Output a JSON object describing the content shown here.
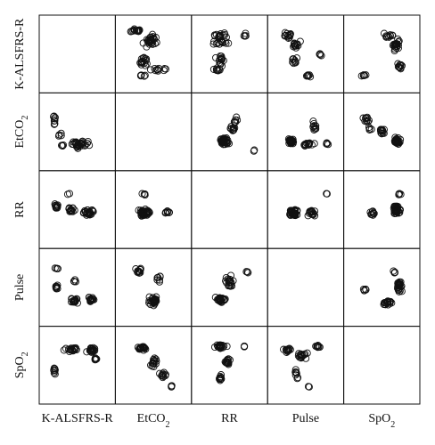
{
  "chart_data": {
    "type": "scatter",
    "variables": [
      "K-ALSFRS-R",
      "EtCO",
      "RR",
      "Pulse",
      "SpO"
    ],
    "label_subscripts": [
      "",
      "2",
      "",
      "",
      "2"
    ],
    "diagonal": "empty",
    "marker": "open-circle",
    "grid": true,
    "axis_ticks": false,
    "panels": [
      {
        "row": 0,
        "col": 1,
        "clusters": [
          [
            0.2,
            0.12,
            0.22,
            0.06,
            14
          ],
          [
            0.45,
            0.28,
            0.18,
            0.18,
            30
          ],
          [
            0.35,
            0.62,
            0.16,
            0.12,
            16
          ],
          [
            0.6,
            0.75,
            0.3,
            0.05,
            10
          ],
          [
            0.3,
            0.85,
            0.12,
            0.04,
            5
          ]
        ]
      },
      {
        "row": 0,
        "col": 2,
        "clusters": [
          [
            0.3,
            0.2,
            0.35,
            0.06,
            14
          ],
          [
            0.4,
            0.32,
            0.3,
            0.08,
            14
          ],
          [
            0.35,
            0.6,
            0.12,
            0.15,
            14
          ],
          [
            0.3,
            0.75,
            0.2,
            0.08,
            8
          ],
          [
            0.75,
            0.2,
            0.06,
            0.08,
            4
          ]
        ]
      },
      {
        "row": 0,
        "col": 3,
        "clusters": [
          [
            0.2,
            0.2,
            0.15,
            0.08,
            12
          ],
          [
            0.35,
            0.35,
            0.15,
            0.1,
            12
          ],
          [
            0.35,
            0.6,
            0.15,
            0.1,
            10
          ],
          [
            0.55,
            0.85,
            0.1,
            0.03,
            6
          ],
          [
            0.75,
            0.5,
            0.08,
            0.05,
            4
          ]
        ]
      },
      {
        "row": 0,
        "col": 4,
        "clusters": [
          [
            0.6,
            0.2,
            0.15,
            0.08,
            10
          ],
          [
            0.75,
            0.35,
            0.1,
            0.15,
            22
          ],
          [
            0.8,
            0.7,
            0.08,
            0.12,
            10
          ],
          [
            0.2,
            0.85,
            0.1,
            0.03,
            5
          ]
        ]
      },
      {
        "row": 1,
        "col": 0,
        "clusters": [
          [
            0.12,
            0.3,
            0.04,
            0.15,
            8
          ],
          [
            0.25,
            0.72,
            0.05,
            0.05,
            4
          ],
          [
            0.55,
            0.7,
            0.3,
            0.12,
            30
          ],
          [
            0.2,
            0.55,
            0.06,
            0.05,
            4
          ]
        ]
      },
      {
        "row": 1,
        "col": 2,
        "clusters": [
          [
            0.4,
            0.65,
            0.15,
            0.1,
            40
          ],
          [
            0.55,
            0.45,
            0.1,
            0.1,
            10
          ],
          [
            0.6,
            0.3,
            0.06,
            0.1,
            6
          ],
          [
            0.9,
            0.8,
            0.04,
            0.03,
            2
          ]
        ]
      },
      {
        "row": 1,
        "col": 3,
        "clusters": [
          [
            0.25,
            0.65,
            0.1,
            0.1,
            30
          ],
          [
            0.55,
            0.7,
            0.15,
            0.08,
            14
          ],
          [
            0.65,
            0.4,
            0.08,
            0.15,
            10
          ],
          [
            0.85,
            0.7,
            0.06,
            0.05,
            4
          ]
        ]
      },
      {
        "row": 1,
        "col": 4,
        "clusters": [
          [
            0.25,
            0.3,
            0.1,
            0.08,
            10
          ],
          [
            0.5,
            0.5,
            0.1,
            0.1,
            14
          ],
          [
            0.75,
            0.65,
            0.1,
            0.1,
            30
          ],
          [
            0.3,
            0.45,
            0.06,
            0.05,
            4
          ]
        ]
      },
      {
        "row": 2,
        "col": 0,
        "clusters": [
          [
            0.15,
            0.45,
            0.08,
            0.1,
            12
          ],
          [
            0.4,
            0.5,
            0.1,
            0.1,
            14
          ],
          [
            0.7,
            0.55,
            0.15,
            0.1,
            24
          ],
          [
            0.35,
            0.25,
            0.04,
            0.04,
            2
          ]
        ]
      },
      {
        "row": 2,
        "col": 1,
        "clusters": [
          [
            0.35,
            0.55,
            0.15,
            0.12,
            40
          ],
          [
            0.75,
            0.55,
            0.1,
            0.08,
            8
          ],
          [
            0.35,
            0.25,
            0.08,
            0.05,
            4
          ]
        ]
      },
      {
        "row": 2,
        "col": 3,
        "clusters": [
          [
            0.3,
            0.55,
            0.15,
            0.12,
            38
          ],
          [
            0.6,
            0.55,
            0.12,
            0.12,
            16
          ],
          [
            0.85,
            0.25,
            0.04,
            0.04,
            2
          ]
        ]
      },
      {
        "row": 2,
        "col": 4,
        "clusters": [
          [
            0.35,
            0.55,
            0.1,
            0.08,
            10
          ],
          [
            0.75,
            0.5,
            0.12,
            0.15,
            36
          ],
          [
            0.8,
            0.25,
            0.05,
            0.05,
            4
          ]
        ]
      },
      {
        "row": 3,
        "col": 0,
        "clusters": [
          [
            0.15,
            0.5,
            0.04,
            0.1,
            8
          ],
          [
            0.15,
            0.2,
            0.04,
            0.05,
            4
          ],
          [
            0.45,
            0.72,
            0.15,
            0.08,
            20
          ],
          [
            0.75,
            0.7,
            0.12,
            0.08,
            16
          ],
          [
            0.45,
            0.4,
            0.05,
            0.06,
            4
          ]
        ]
      },
      {
        "row": 3,
        "col": 1,
        "clusters": [
          [
            0.25,
            0.25,
            0.1,
            0.1,
            12
          ],
          [
            0.5,
            0.72,
            0.15,
            0.1,
            36
          ],
          [
            0.6,
            0.35,
            0.1,
            0.1,
            8
          ]
        ]
      },
      {
        "row": 3,
        "col": 2,
        "clusters": [
          [
            0.35,
            0.7,
            0.15,
            0.1,
            36
          ],
          [
            0.5,
            0.4,
            0.12,
            0.18,
            20
          ],
          [
            0.8,
            0.25,
            0.05,
            0.04,
            3
          ]
        ]
      },
      {
        "row": 3,
        "col": 4,
        "clusters": [
          [
            0.25,
            0.55,
            0.1,
            0.04,
            5
          ],
          [
            0.6,
            0.75,
            0.12,
            0.06,
            18
          ],
          [
            0.8,
            0.5,
            0.08,
            0.2,
            24
          ],
          [
            0.7,
            0.25,
            0.05,
            0.05,
            4
          ]
        ]
      },
      {
        "row": 4,
        "col": 0,
        "clusters": [
          [
            0.12,
            0.6,
            0.04,
            0.12,
            8
          ],
          [
            0.4,
            0.25,
            0.2,
            0.06,
            18
          ],
          [
            0.75,
            0.25,
            0.15,
            0.08,
            20
          ],
          [
            0.8,
            0.4,
            0.06,
            0.06,
            6
          ]
        ]
      },
      {
        "row": 4,
        "col": 1,
        "clusters": [
          [
            0.3,
            0.22,
            0.15,
            0.06,
            24
          ],
          [
            0.5,
            0.45,
            0.1,
            0.15,
            16
          ],
          [
            0.65,
            0.65,
            0.1,
            0.1,
            10
          ],
          [
            0.8,
            0.85,
            0.05,
            0.04,
            3
          ]
        ]
      },
      {
        "row": 4,
        "col": 2,
        "clusters": [
          [
            0.35,
            0.2,
            0.15,
            0.06,
            24
          ],
          [
            0.45,
            0.45,
            0.1,
            0.15,
            16
          ],
          [
            0.35,
            0.7,
            0.06,
            0.12,
            10
          ],
          [
            0.75,
            0.2,
            0.05,
            0.04,
            3
          ]
        ]
      },
      {
        "row": 4,
        "col": 3,
        "clusters": [
          [
            0.2,
            0.25,
            0.1,
            0.06,
            12
          ],
          [
            0.45,
            0.35,
            0.15,
            0.1,
            16
          ],
          [
            0.7,
            0.2,
            0.1,
            0.04,
            8
          ],
          [
            0.35,
            0.65,
            0.05,
            0.15,
            8
          ],
          [
            0.55,
            0.85,
            0.04,
            0.03,
            2
          ]
        ]
      }
    ]
  }
}
